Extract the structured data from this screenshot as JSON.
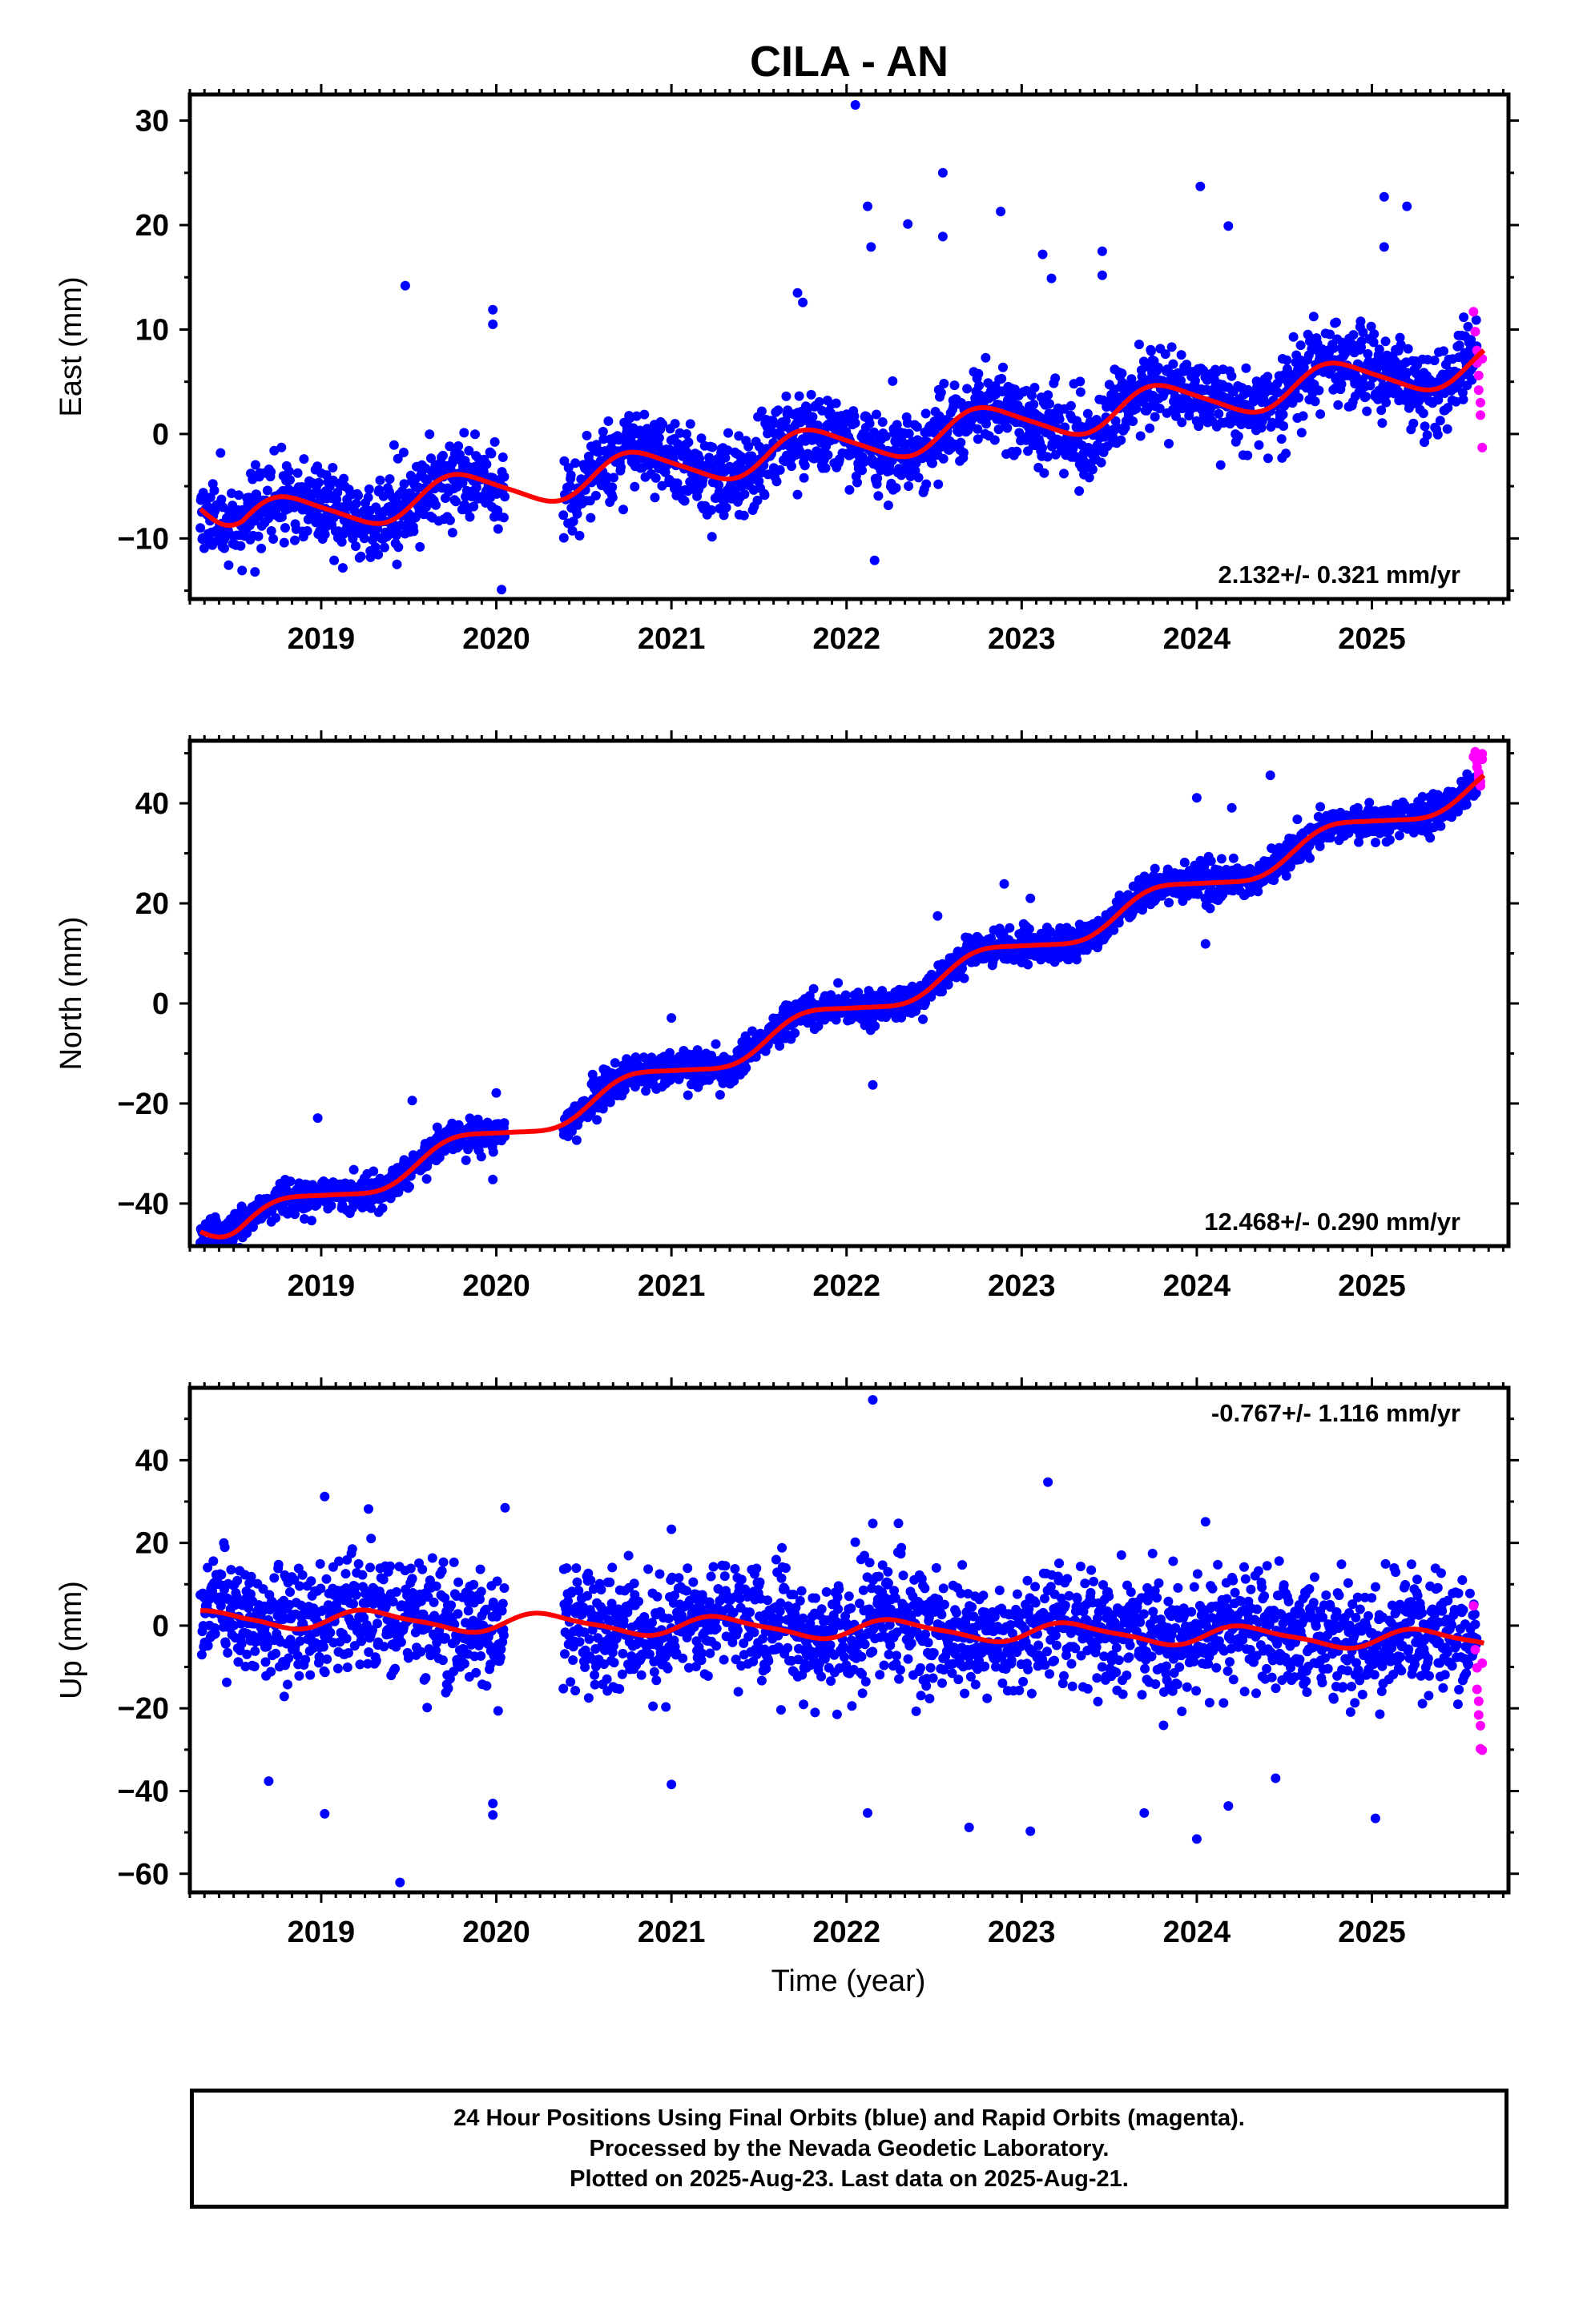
{
  "title": "CILA - AN",
  "xlabel": "Time (year)",
  "caption": [
    "24 Hour Positions Using Final Orbits (blue) and Rapid Orbits (magenta).",
    "Processed by the Nevada Geodetic Laboratory.",
    "Plotted on 2025-Aug-23. Last data on 2025-Aug-21."
  ],
  "colors": {
    "final_orbits": "#0000ff",
    "rapid_orbits": "#ff00ff",
    "model": "#ff0000",
    "frame": "#000000"
  },
  "chart_data": [
    {
      "type": "scatter",
      "component": "east",
      "ylabel": "East (mm)",
      "rate_label": "2.132+/- 0.321 mm/yr",
      "xlim": [
        2018.25,
        2025.78
      ],
      "ylim": [
        -15.8,
        32.5
      ],
      "x_ticks": [
        2019,
        2020,
        2021,
        2022,
        2023,
        2024,
        2025
      ],
      "x_tick_labels": [
        "2019",
        "2020",
        "2021",
        "2022",
        "2023",
        "2024",
        "2025"
      ],
      "y_ticks": [
        -10,
        0,
        10,
        20,
        30
      ],
      "y_tick_labels": [
        "−10",
        "0",
        "10",
        "20",
        "30"
      ],
      "data_gap": [
        2020.05,
        2020.38
      ],
      "trend": {
        "ref_year": 2022.0,
        "offset": -1.0,
        "rate": 2.132
      },
      "seasonal": {
        "amplitude": 1.8,
        "phase": 0.55,
        "semiannual": 0.3
      },
      "start_value": -6.3,
      "scatter_sd": 1.9,
      "outliers": [
        {
          "x": 2022.05,
          "y": 31.5
        },
        {
          "x": 2022.12,
          "y": 21.8
        },
        {
          "x": 2022.14,
          "y": 17.9
        },
        {
          "x": 2022.55,
          "y": 25.0
        },
        {
          "x": 2022.55,
          "y": 18.9
        },
        {
          "x": 2022.35,
          "y": 20.1
        },
        {
          "x": 2022.88,
          "y": 21.3
        },
        {
          "x": 2021.72,
          "y": 13.5
        },
        {
          "x": 2021.75,
          "y": 12.6
        },
        {
          "x": 2023.12,
          "y": 17.2
        },
        {
          "x": 2023.17,
          "y": 14.9
        },
        {
          "x": 2023.46,
          "y": 17.5
        },
        {
          "x": 2023.46,
          "y": 15.2
        },
        {
          "x": 2024.02,
          "y": 23.7
        },
        {
          "x": 2024.18,
          "y": 19.9
        },
        {
          "x": 2025.07,
          "y": 22.7
        },
        {
          "x": 2025.07,
          "y": 17.9
        },
        {
          "x": 2025.2,
          "y": 21.8
        },
        {
          "x": 2019.48,
          "y": 14.2
        },
        {
          "x": 2019.98,
          "y": 11.9
        },
        {
          "x": 2019.98,
          "y": 10.5
        },
        {
          "x": 2020.03,
          "y": -14.9
        },
        {
          "x": 2019.28,
          "y": -11.2
        },
        {
          "x": 2022.16,
          "y": -12.1
        },
        {
          "x": 2021.72,
          "y": -5.8
        }
      ],
      "rapid_points": [
        {
          "x": 2025.58,
          "y": 11.7
        },
        {
          "x": 2025.59,
          "y": 9.8
        },
        {
          "x": 2025.6,
          "y": 8.0
        },
        {
          "x": 2025.6,
          "y": 6.8
        },
        {
          "x": 2025.61,
          "y": 5.6
        },
        {
          "x": 2025.61,
          "y": 4.2
        },
        {
          "x": 2025.62,
          "y": 3.0
        },
        {
          "x": 2025.62,
          "y": 1.8
        },
        {
          "x": 2025.63,
          "y": -1.3
        },
        {
          "x": 2025.63,
          "y": 7.2
        }
      ],
      "seed": 11
    },
    {
      "type": "scatter",
      "component": "north",
      "ylabel": "North (mm)",
      "rate_label": "12.468+/- 0.290 mm/yr",
      "xlim": [
        2018.25,
        2025.78
      ],
      "ylim": [
        -48.5,
        52.5
      ],
      "x_ticks": [
        2019,
        2020,
        2021,
        2022,
        2023,
        2024,
        2025
      ],
      "x_tick_labels": [
        "2019",
        "2020",
        "2021",
        "2022",
        "2023",
        "2024",
        "2025"
      ],
      "y_ticks": [
        -40,
        -20,
        0,
        20,
        40
      ],
      "y_tick_labels": [
        "−40",
        "−20",
        "0",
        "20",
        "40"
      ],
      "data_gap": [
        2020.05,
        2020.38
      ],
      "trend": {
        "ref_year": 2022.0,
        "offset": -1.5,
        "rate": 12.468
      },
      "seasonal": {
        "amplitude": 2.5,
        "phase": 0.55,
        "semiannual": 0.4
      },
      "start_value": -44.5,
      "scatter_sd": 1.7,
      "outliers": [
        {
          "x": 2018.98,
          "y": -22.9
        },
        {
          "x": 2019.52,
          "y": -19.4
        },
        {
          "x": 2020.0,
          "y": -17.9
        },
        {
          "x": 2019.98,
          "y": -35.2
        },
        {
          "x": 2021.0,
          "y": -2.9
        },
        {
          "x": 2022.15,
          "y": -16.3
        },
        {
          "x": 2022.52,
          "y": 17.5
        },
        {
          "x": 2022.9,
          "y": 23.9
        },
        {
          "x": 2023.05,
          "y": 21.0
        },
        {
          "x": 2024.0,
          "y": 41.1
        },
        {
          "x": 2024.05,
          "y": 11.9
        },
        {
          "x": 2024.2,
          "y": 39.1
        },
        {
          "x": 2024.42,
          "y": 45.6
        },
        {
          "x": 2025.35,
          "y": 41.9
        }
      ],
      "rapid_points": [
        {
          "x": 2025.58,
          "y": 49.3
        },
        {
          "x": 2025.59,
          "y": 50.3
        },
        {
          "x": 2025.6,
          "y": 48.3
        },
        {
          "x": 2025.6,
          "y": 47.2
        },
        {
          "x": 2025.61,
          "y": 46.1
        },
        {
          "x": 2025.61,
          "y": 45.2
        },
        {
          "x": 2025.62,
          "y": 44.3
        },
        {
          "x": 2025.62,
          "y": 43.5
        },
        {
          "x": 2025.63,
          "y": 49.9
        },
        {
          "x": 2025.63,
          "y": 48.8
        }
      ],
      "seed": 23
    },
    {
      "type": "scatter",
      "component": "up",
      "ylabel": "Up (mm)",
      "rate_label": "-0.767+/- 1.116 mm/yr",
      "xlim": [
        2018.25,
        2025.78
      ],
      "ylim": [
        -64.5,
        57.5
      ],
      "x_ticks": [
        2019,
        2020,
        2021,
        2022,
        2023,
        2024,
        2025
      ],
      "x_tick_labels": [
        "2019",
        "2020",
        "2021",
        "2022",
        "2023",
        "2024",
        "2025"
      ],
      "y_ticks": [
        -60,
        -40,
        -20,
        0,
        20,
        40
      ],
      "y_tick_labels": [
        "−60",
        "−40",
        "−20",
        "0",
        "20",
        "40"
      ],
      "data_gap": [
        2020.05,
        2020.38
      ],
      "trend": {
        "ref_year": 2022.0,
        "offset": -0.8,
        "rate": -0.767
      },
      "seasonal": {
        "amplitude": 2.2,
        "phase": 0.05,
        "semiannual": 0.6
      },
      "start_value": 3.5,
      "scatter_sd": 7.0,
      "outliers": [
        {
          "x": 2022.15,
          "y": 54.6
        },
        {
          "x": 2023.15,
          "y": 34.7
        },
        {
          "x": 2019.02,
          "y": 31.2
        },
        {
          "x": 2019.27,
          "y": 28.2
        },
        {
          "x": 2020.05,
          "y": 28.5
        },
        {
          "x": 2024.05,
          "y": 25.1
        },
        {
          "x": 2022.15,
          "y": 24.7
        },
        {
          "x": 2021.0,
          "y": 23.3
        },
        {
          "x": 2019.45,
          "y": -62.1
        },
        {
          "x": 2024.0,
          "y": -51.6
        },
        {
          "x": 2023.05,
          "y": -49.7
        },
        {
          "x": 2022.7,
          "y": -48.8
        },
        {
          "x": 2025.02,
          "y": -46.6
        },
        {
          "x": 2019.02,
          "y": -45.5
        },
        {
          "x": 2019.98,
          "y": -45.8
        },
        {
          "x": 2019.98,
          "y": -43.0
        },
        {
          "x": 2022.12,
          "y": -45.3
        },
        {
          "x": 2023.7,
          "y": -45.3
        },
        {
          "x": 2024.18,
          "y": -43.6
        },
        {
          "x": 2021.0,
          "y": -38.4
        },
        {
          "x": 2018.7,
          "y": -37.6
        },
        {
          "x": 2024.45,
          "y": -36.9
        }
      ],
      "rapid_points": [
        {
          "x": 2025.58,
          "y": 4.8
        },
        {
          "x": 2025.59,
          "y": -5.8
        },
        {
          "x": 2025.6,
          "y": -10.2
        },
        {
          "x": 2025.6,
          "y": -15.4
        },
        {
          "x": 2025.61,
          "y": -18.3
        },
        {
          "x": 2025.61,
          "y": -21.6
        },
        {
          "x": 2025.62,
          "y": -24.2
        },
        {
          "x": 2025.62,
          "y": -29.8
        },
        {
          "x": 2025.63,
          "y": -30.1
        },
        {
          "x": 2025.63,
          "y": -9.1
        }
      ],
      "seed": 37
    }
  ]
}
